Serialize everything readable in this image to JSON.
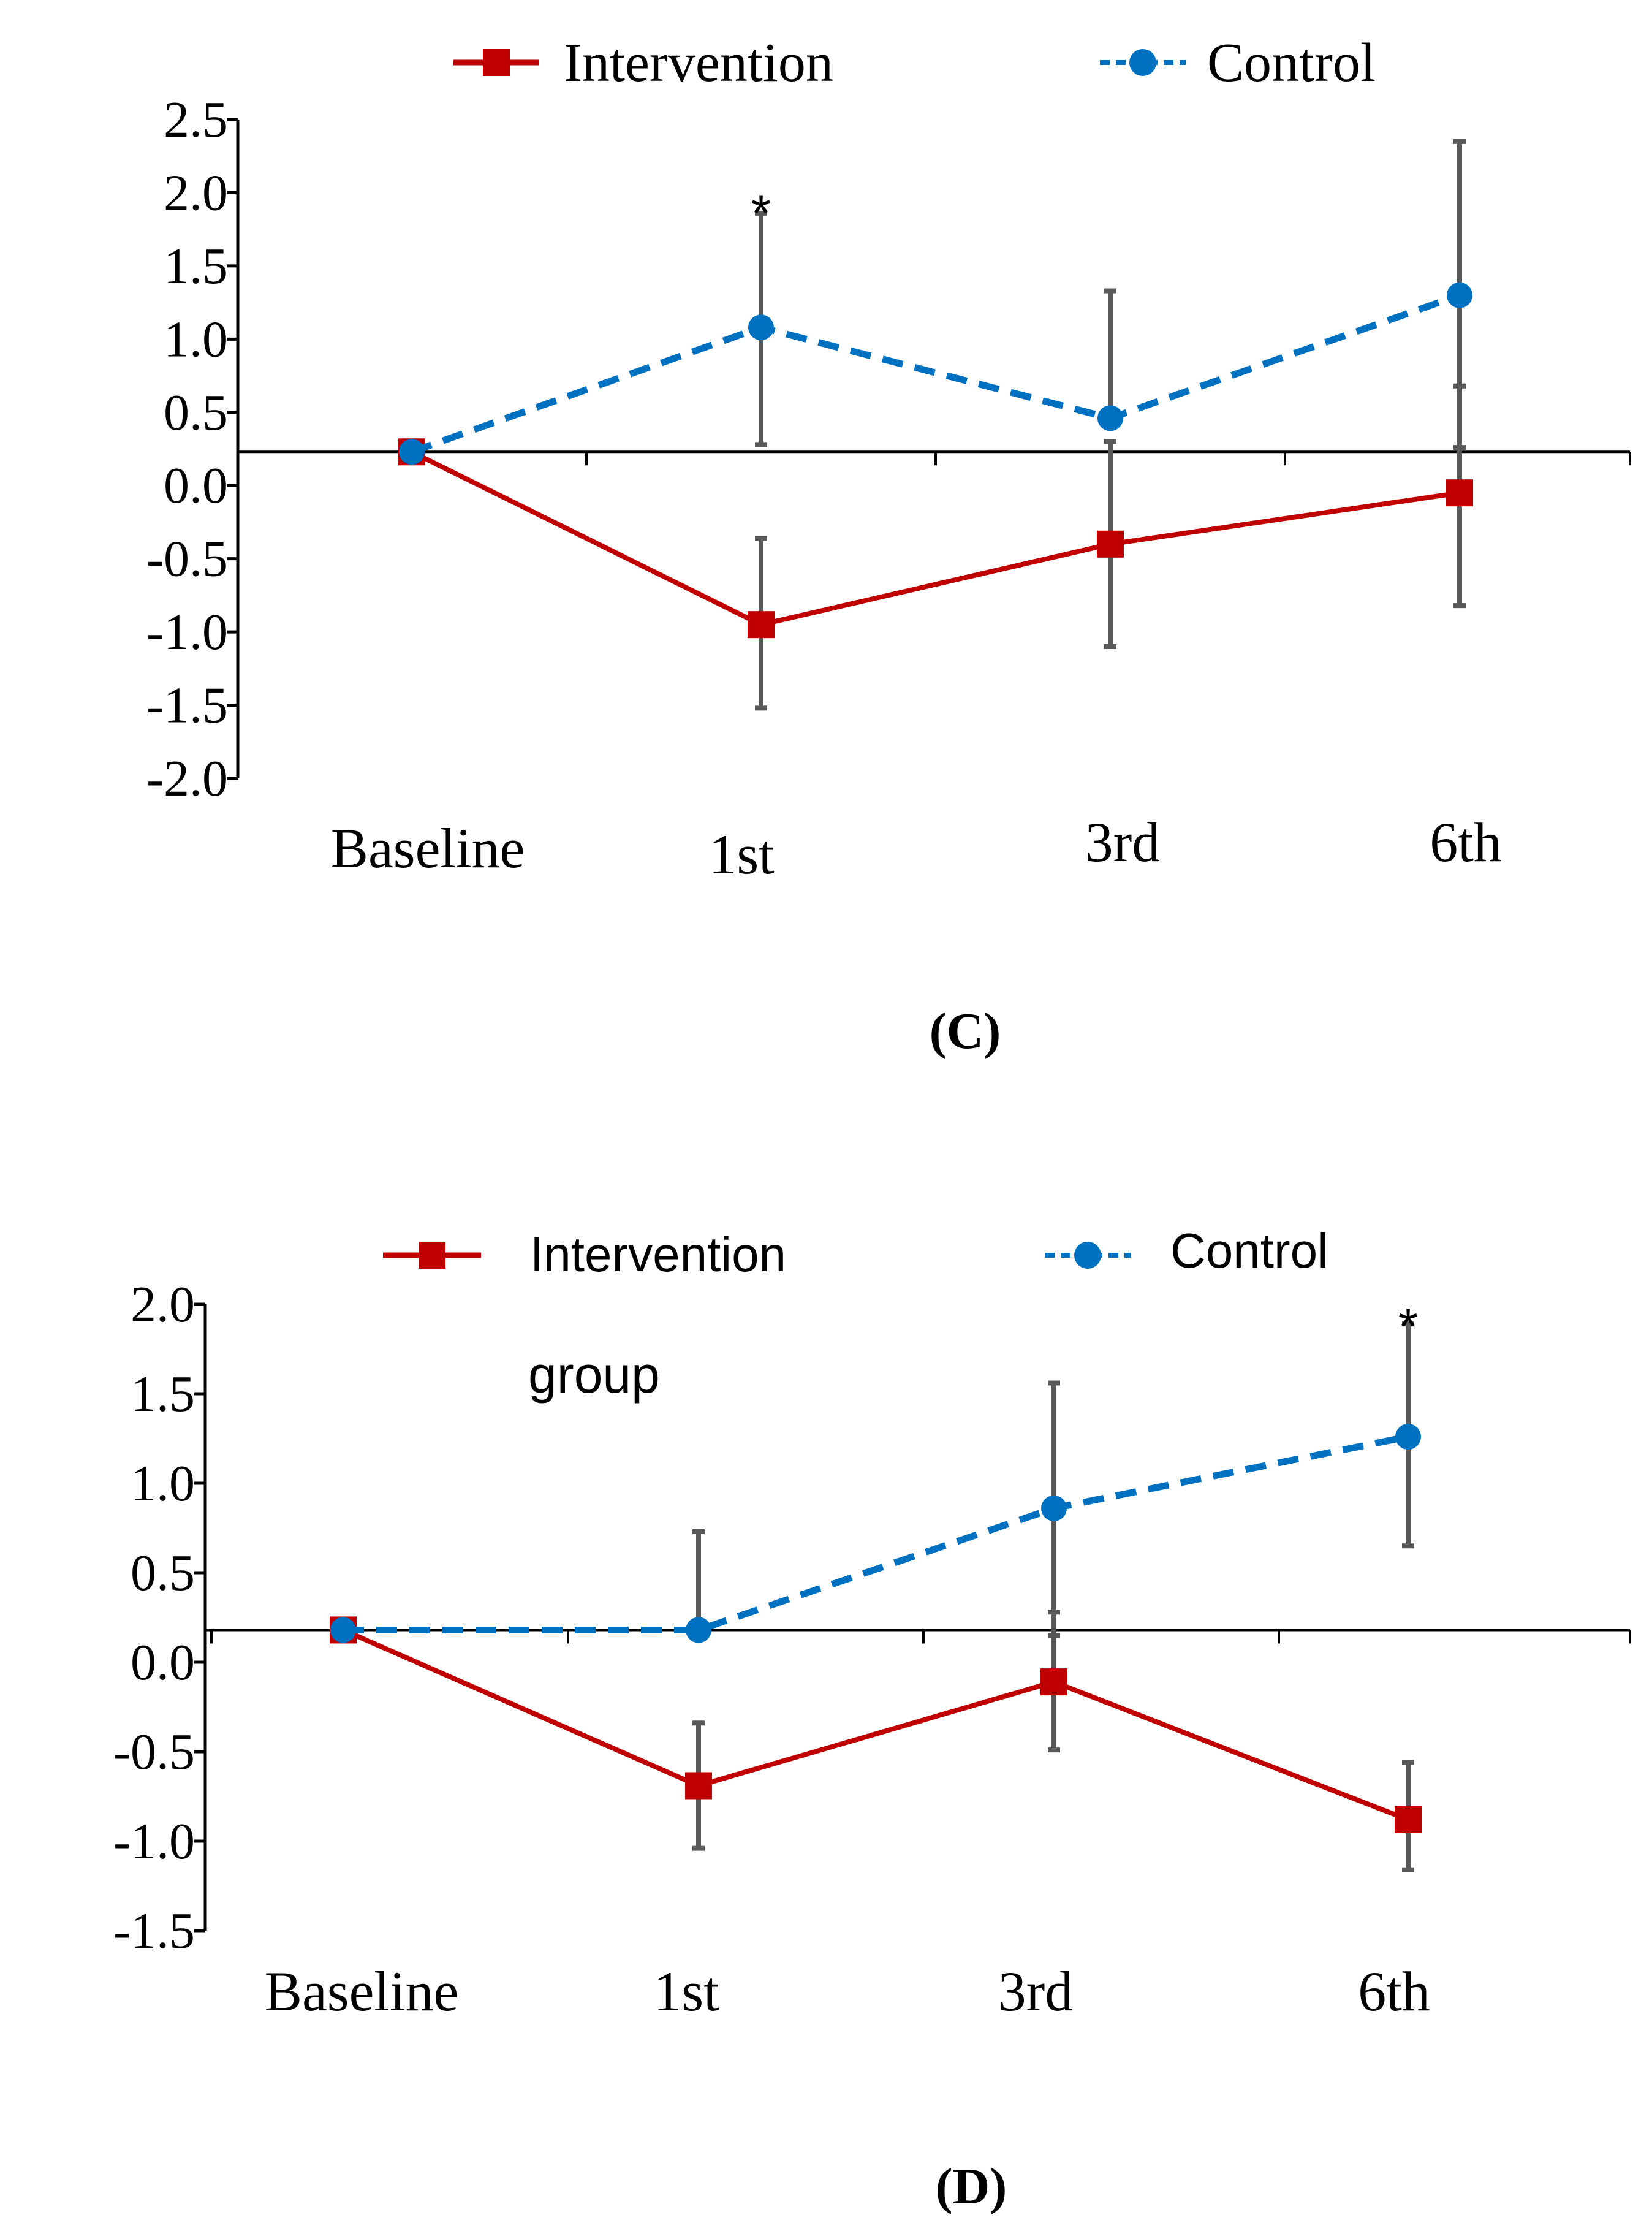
{
  "chart_data": [
    {
      "type": "line",
      "panel": "(C)",
      "panel_letter": "C",
      "categories": [
        "Baseline",
        "1st",
        "3rd",
        "6th"
      ],
      "ylim": [
        -2.0,
        2.5
      ],
      "yticks": [
        "2.5",
        "2.0",
        "1.5",
        "1.0",
        "0.5",
        "0.0",
        "-0.5",
        "-1.0",
        "-1.5",
        "-2.0"
      ],
      "ytick_values": [
        2.5,
        2.0,
        1.5,
        1.0,
        0.5,
        0.0,
        -0.5,
        -1.0,
        -1.5,
        -2.0
      ],
      "x_axis_crossing": 0.23,
      "legend": {
        "position": "top-center"
      },
      "series": [
        {
          "name": "Intervention",
          "color": "#c00000",
          "marker": "square",
          "dash": "solid",
          "values": [
            0.23,
            -0.95,
            -0.4,
            -0.05
          ],
          "err_low": [
            null,
            -1.52,
            -1.1,
            -0.82
          ],
          "err_high": [
            null,
            -0.36,
            0.3,
            0.68
          ]
        },
        {
          "name": "Control",
          "color": "#0070c0",
          "marker": "circle",
          "dash": "dashed",
          "values": [
            0.23,
            1.08,
            0.46,
            1.3
          ],
          "err_low": [
            null,
            0.28,
            null,
            0.26
          ],
          "err_high": [
            null,
            1.86,
            1.33,
            2.35
          ]
        }
      ],
      "significance": [
        {
          "category": "1st",
          "label": "*",
          "y": 2.0
        }
      ],
      "annotations": []
    },
    {
      "type": "line",
      "panel": "(D)",
      "panel_letter": "D",
      "categories": [
        "Baseline",
        "1st",
        "3rd",
        "6th"
      ],
      "ylim": [
        -1.5,
        2.0
      ],
      "yticks": [
        "2.0",
        "1.5",
        "1.0",
        "0.5",
        "0.0",
        "-0.5",
        "-1.0",
        "-1.5"
      ],
      "ytick_values": [
        2.0,
        1.5,
        1.0,
        0.5,
        0.0,
        -0.5,
        -1.0,
        -1.5
      ],
      "x_axis_crossing": 0.18,
      "legend": {
        "position": "top-center"
      },
      "series": [
        {
          "name": "Intervention",
          "color": "#c00000",
          "marker": "square",
          "dash": "solid",
          "values": [
            0.18,
            -0.69,
            -0.11,
            -0.88
          ],
          "err_low": [
            null,
            -1.04,
            -0.49,
            -1.16
          ],
          "err_high": [
            null,
            -0.34,
            0.28,
            -0.56
          ]
        },
        {
          "name": "Control",
          "color": "#0070c0",
          "marker": "circle",
          "dash": "dashed",
          "values": [
            0.18,
            0.18,
            0.86,
            1.26
          ],
          "err_low": [
            null,
            null,
            0.15,
            0.65
          ],
          "err_high": [
            null,
            0.73,
            1.56,
            1.89
          ]
        }
      ],
      "significance": [
        {
          "category": "6th",
          "label": "*",
          "y": 1.99
        }
      ],
      "annotations": [
        "group"
      ]
    }
  ],
  "colors": {
    "errorbar": "#595959",
    "axis": "#000000"
  }
}
